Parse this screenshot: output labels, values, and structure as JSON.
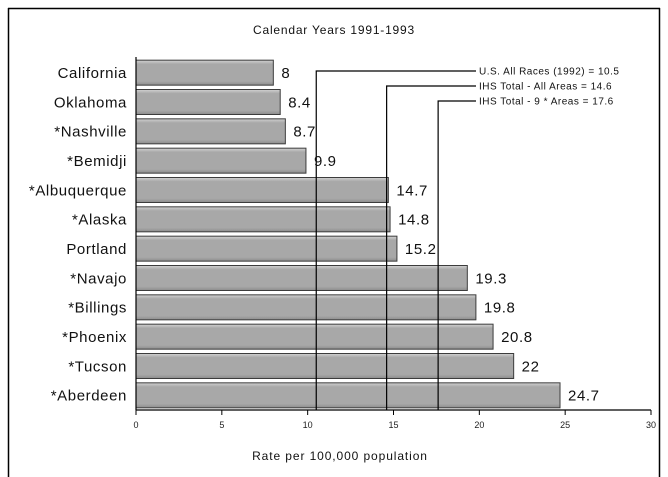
{
  "chart_data": {
    "type": "bar",
    "orientation": "horizontal",
    "title": "Calendar Years 1991-1993",
    "xlabel": "Rate per 100,000 population",
    "categories": [
      "California",
      "Oklahoma",
      "*Nashville",
      "*Bemidji",
      "*Albuquerque",
      "*Alaska",
      "Portland",
      "*Navajo",
      "*Billings",
      "*Phoenix",
      "*Tucson",
      "*Aberdeen"
    ],
    "values": [
      8,
      8.4,
      8.7,
      9.9,
      14.7,
      14.8,
      15.2,
      19.3,
      19.8,
      20.8,
      22,
      24.7
    ],
    "xlim": [
      0,
      30
    ],
    "xticks": [
      0,
      5,
      10,
      15,
      20,
      25,
      30
    ],
    "grid": false,
    "reference_lines": [
      {
        "label": "U.S. All Races (1992) = 10.5",
        "value": 10.5
      },
      {
        "label": "IHS Total - All Areas = 14.6",
        "value": 14.6
      },
      {
        "label": "IHS Total - 9 * Areas = 17.6",
        "value": 17.6
      }
    ],
    "colors": {
      "bar": "#a8a8a8",
      "bar_highlight": "#d2d2d2",
      "bar_shadow": "#8c8c8c",
      "bar_edge": "#3c3c3c",
      "line": "#000000",
      "frame": "#000000"
    }
  }
}
